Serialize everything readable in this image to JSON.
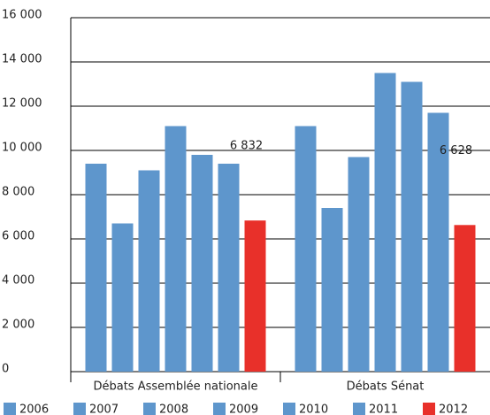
{
  "chart_data": {
    "type": "bar",
    "categories": [
      "Débats Assemblée nationale",
      "Débats Sénat"
    ],
    "series": [
      {
        "name": "2006",
        "color": "#5e96cc",
        "values": [
          9400,
          11100
        ]
      },
      {
        "name": "2007",
        "color": "#5e96cc",
        "values": [
          6700,
          7400
        ]
      },
      {
        "name": "2008",
        "color": "#5e96cc",
        "values": [
          9100,
          9700
        ]
      },
      {
        "name": "2009",
        "color": "#5e96cc",
        "values": [
          11100,
          13500
        ]
      },
      {
        "name": "2010",
        "color": "#5e96cc",
        "values": [
          9800,
          13100
        ]
      },
      {
        "name": "2011",
        "color": "#5e96cc",
        "values": [
          9400,
          11700
        ]
      },
      {
        "name": "2012",
        "color": "#e8302a",
        "values": [
          6832,
          6628
        ],
        "value_labels": [
          "6 832",
          "6 628"
        ]
      }
    ],
    "ylim": [
      0,
      16000
    ],
    "yticks": [
      0,
      {
        "value": 2000,
        "label": "2 000"
      },
      {
        "value": 4000,
        "label": "4 000"
      },
      {
        "value": 6000,
        "label": "6 000"
      },
      {
        "value": 8000,
        "label": "8 000"
      },
      {
        "value": 10000,
        "label": "10 000"
      },
      {
        "value": 12000,
        "label": "12 000"
      },
      {
        "value": 14000,
        "label": "14 000"
      },
      {
        "value": 16000,
        "label": "16 000"
      }
    ],
    "grid": true,
    "legend": "bottom"
  }
}
